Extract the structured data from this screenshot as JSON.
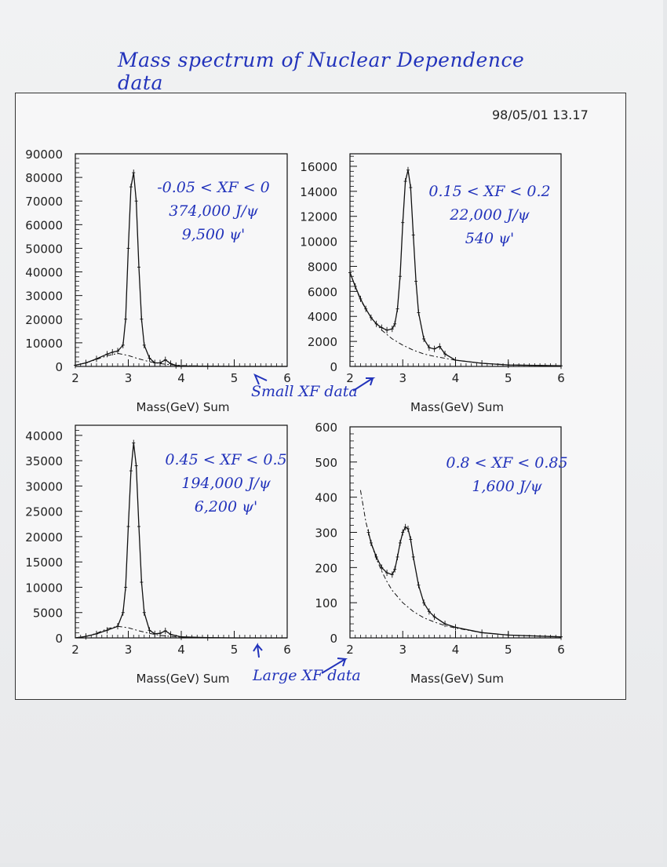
{
  "page": {
    "handwritten_title": "Mass spectrum of Nuclear Dependence data",
    "timestamp": "98/05/01   13.17",
    "note_small": "Small  XF  data",
    "note_large": "Large  XF  data"
  },
  "colors": {
    "ink": "#2233bb",
    "plot": "#111111",
    "frame": "#333333"
  },
  "chart_data": [
    {
      "type": "line",
      "xlabel": "Mass(GeV) Sum",
      "xlim": [
        2,
        6
      ],
      "ylim": [
        0,
        90000
      ],
      "xticks": [
        2,
        3,
        4,
        5,
        6
      ],
      "yticks": [
        0,
        10000,
        20000,
        30000,
        40000,
        50000,
        60000,
        70000,
        80000,
        90000
      ],
      "annotations": [
        "-0.05 < XF < 0",
        "374,000 J/ψ",
        "9,500 ψ'"
      ],
      "series": [
        {
          "style": "fit",
          "x": [
            2.0,
            2.2,
            2.4,
            2.6,
            2.7,
            2.8,
            2.9,
            2.95,
            3.0,
            3.05,
            3.1,
            3.15,
            3.2,
            3.25,
            3.3,
            3.4,
            3.5,
            3.6,
            3.7,
            3.8,
            3.9,
            4.0,
            4.5,
            5.0,
            6.0
          ],
          "y": [
            500,
            1500,
            3200,
            5200,
            6000,
            6500,
            9000,
            20000,
            50000,
            76000,
            82000,
            70000,
            42000,
            20000,
            9000,
            3500,
            1500,
            1500,
            2800,
            1200,
            400,
            200,
            50,
            0,
            0
          ]
        },
        {
          "style": "background",
          "x": [
            2.0,
            2.2,
            2.4,
            2.6,
            2.8,
            3.0,
            3.2,
            3.4,
            3.6,
            3.8,
            4.0,
            4.5,
            5.0,
            6.0
          ],
          "y": [
            500,
            1500,
            3000,
            4500,
            5500,
            4600,
            3200,
            2000,
            1200,
            700,
            400,
            100,
            0,
            0
          ]
        }
      ]
    },
    {
      "type": "line",
      "xlabel": "Mass(GeV) Sum",
      "xlim": [
        2,
        6
      ],
      "ylim": [
        0,
        17000
      ],
      "xticks": [
        2,
        3,
        4,
        5,
        6
      ],
      "yticks": [
        0,
        2000,
        4000,
        6000,
        8000,
        10000,
        12000,
        14000,
        16000
      ],
      "annotations": [
        "0.15 < XF < 0.2",
        "22,000 J/ψ",
        "540 ψ'"
      ],
      "series": [
        {
          "style": "fit",
          "x": [
            2.0,
            2.1,
            2.2,
            2.3,
            2.4,
            2.5,
            2.6,
            2.7,
            2.8,
            2.85,
            2.9,
            2.95,
            3.0,
            3.05,
            3.1,
            3.15,
            3.2,
            3.25,
            3.3,
            3.4,
            3.5,
            3.6,
            3.7,
            3.8,
            4.0,
            4.5,
            5.0,
            6.0
          ],
          "y": [
            7500,
            6400,
            5400,
            4600,
            3900,
            3400,
            3100,
            2900,
            3000,
            3400,
            4600,
            7200,
            11500,
            14800,
            15700,
            14300,
            10500,
            6800,
            4300,
            2200,
            1500,
            1400,
            1600,
            1000,
            500,
            250,
            120,
            50
          ]
        },
        {
          "style": "background",
          "x": [
            2.0,
            2.2,
            2.4,
            2.6,
            2.8,
            3.0,
            3.2,
            3.4,
            3.6,
            3.8,
            4.0,
            4.5,
            5.0,
            6.0
          ],
          "y": [
            7500,
            5300,
            3900,
            2900,
            2200,
            1700,
            1300,
            1000,
            800,
            650,
            500,
            250,
            120,
            50
          ]
        }
      ]
    },
    {
      "type": "line",
      "xlabel": "Mass(GeV) Sum",
      "xlim": [
        2,
        6
      ],
      "ylim": [
        0,
        42000
      ],
      "xticks": [
        2,
        3,
        4,
        5,
        6
      ],
      "yticks": [
        0,
        5000,
        10000,
        15000,
        20000,
        25000,
        30000,
        35000,
        40000
      ],
      "annotations": [
        "0.45 < XF < 0.5",
        "194,000 J/ψ",
        "6,200 ψ'"
      ],
      "series": [
        {
          "style": "fit",
          "x": [
            2.0,
            2.2,
            2.4,
            2.6,
            2.8,
            2.9,
            2.95,
            3.0,
            3.05,
            3.1,
            3.15,
            3.2,
            3.25,
            3.3,
            3.4,
            3.5,
            3.6,
            3.7,
            3.8,
            4.0,
            4.5,
            5.0,
            6.0
          ],
          "y": [
            0,
            300,
            800,
            1500,
            2300,
            5000,
            10000,
            22000,
            33000,
            38500,
            34000,
            22000,
            11000,
            5000,
            1500,
            800,
            900,
            1400,
            700,
            200,
            50,
            0,
            0
          ]
        },
        {
          "style": "background",
          "x": [
            2.0,
            2.2,
            2.4,
            2.6,
            2.8,
            3.0,
            3.2,
            3.4,
            3.6,
            3.8,
            4.0,
            4.5,
            5.0,
            6.0
          ],
          "y": [
            0,
            300,
            900,
            1800,
            2300,
            2000,
            1400,
            900,
            500,
            300,
            150,
            30,
            0,
            0
          ]
        }
      ]
    },
    {
      "type": "line",
      "xlabel": "Mass(GeV) Sum",
      "xlim": [
        2,
        6
      ],
      "ylim": [
        0,
        600
      ],
      "xticks": [
        2,
        3,
        4,
        5,
        6
      ],
      "yticks": [
        0,
        100,
        200,
        300,
        400,
        500,
        600
      ],
      "annotations": [
        "0.8 < XF < 0.85",
        "1,600 J/ψ"
      ],
      "series": [
        {
          "style": "fit",
          "x": [
            2.35,
            2.4,
            2.5,
            2.6,
            2.7,
            2.8,
            2.85,
            2.9,
            2.95,
            3.0,
            3.05,
            3.1,
            3.15,
            3.2,
            3.3,
            3.4,
            3.5,
            3.6,
            3.8,
            4.0,
            4.5,
            5.0,
            6.0
          ],
          "y": [
            300,
            270,
            230,
            200,
            185,
            180,
            195,
            230,
            270,
            300,
            315,
            310,
            280,
            230,
            150,
            100,
            75,
            60,
            40,
            30,
            15,
            8,
            3
          ]
        },
        {
          "style": "background",
          "x": [
            2.2,
            2.3,
            2.4,
            2.5,
            2.6,
            2.7,
            2.8,
            3.0,
            3.2,
            3.4,
            3.6,
            3.8,
            4.0,
            4.5,
            5.0,
            6.0
          ],
          "y": [
            420,
            330,
            270,
            225,
            190,
            160,
            135,
            100,
            75,
            57,
            45,
            35,
            28,
            15,
            8,
            3
          ]
        }
      ]
    }
  ]
}
